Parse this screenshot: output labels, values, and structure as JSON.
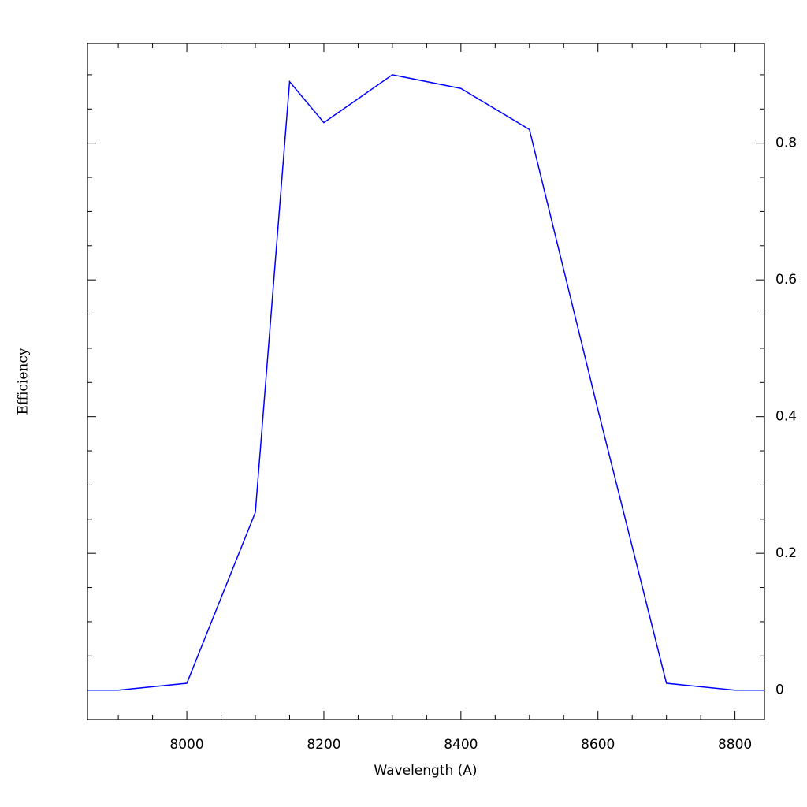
{
  "chart_data": {
    "type": "line",
    "x_label": "Wavelength (A)",
    "y_label": "Efficiency",
    "x": [
      7850,
      7900,
      8000,
      8100,
      8150,
      8200,
      8300,
      8400,
      8500,
      8600,
      8700,
      8800,
      8850
    ],
    "series": [
      {
        "color": "#0000ff",
        "values": [
          0.0,
          0.0,
          0.01,
          0.26,
          0.89,
          0.83,
          0.9,
          0.88,
          0.82,
          0.41,
          0.01,
          0.0,
          0.0
        ]
      }
    ],
    "xlim": [
      7855,
      8843
    ],
    "xticks": [
      8000,
      8200,
      8400,
      8600,
      8800
    ],
    "xminorticks": [
      7900,
      7950,
      8050,
      8100,
      8150,
      8250,
      8300,
      8350,
      8450,
      8500,
      8550,
      8650,
      8700,
      8750
    ],
    "ylim": [
      -0.043,
      0.946
    ],
    "yticks": [
      0,
      0.2,
      0.4,
      0.6,
      0.8
    ],
    "yminorticks": [
      0.05,
      0.1,
      0.15,
      0.25,
      0.3,
      0.35,
      0.45,
      0.5,
      0.55,
      0.65,
      0.7,
      0.75,
      0.85,
      0.9
    ],
    "ytick_side": "right"
  }
}
